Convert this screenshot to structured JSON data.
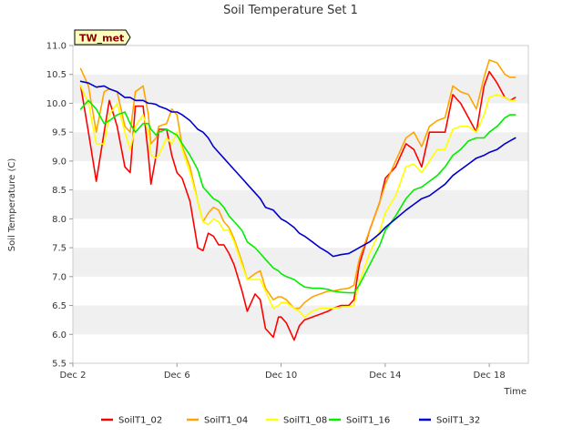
{
  "chart_data": {
    "type": "line",
    "title": "Soil Temperature Set 1",
    "xlabel": "Time",
    "ylabel": "Soil Temperature (C)",
    "badge": "TW_met",
    "xlim": [
      2.0,
      19.5
    ],
    "ylim": [
      5.5,
      11.0
    ],
    "yticks": [
      "5.5",
      "6.0",
      "6.5",
      "7.0",
      "7.5",
      "8.0",
      "8.5",
      "9.0",
      "9.5",
      "10.0",
      "10.5",
      "11.0"
    ],
    "xticks": [
      {
        "value": 2,
        "label": "Dec 2"
      },
      {
        "value": 6,
        "label": "Dec 6"
      },
      {
        "value": 10,
        "label": "Dec 10"
      },
      {
        "value": 14,
        "label": "Dec 14"
      },
      {
        "value": 18,
        "label": "Dec 18"
      }
    ],
    "legend_position": "bottom",
    "series": [
      {
        "name": "SoilT1_02",
        "color": "#ff0000",
        "x": [
          2.3,
          2.6,
          2.9,
          3.2,
          3.4,
          3.7,
          4.0,
          4.2,
          4.4,
          4.7,
          4.9,
          5.0,
          5.2,
          5.3,
          5.6,
          5.8,
          6.0,
          6.2,
          6.5,
          6.8,
          7.0,
          7.2,
          7.4,
          7.6,
          7.8,
          8.0,
          8.2,
          8.5,
          8.7,
          9.0,
          9.2,
          9.4,
          9.7,
          9.9,
          10.0,
          10.2,
          10.5,
          10.7,
          10.9,
          11.2,
          11.5,
          11.8,
          12.0,
          12.3,
          12.6,
          12.8,
          13.0,
          13.4,
          13.8,
          14.0,
          14.4,
          14.8,
          15.1,
          15.4,
          15.7,
          16.0,
          16.3,
          16.6,
          16.9,
          17.2,
          17.5,
          17.8,
          18.0,
          18.3,
          18.6,
          18.8,
          19.0
        ],
        "values": [
          10.3,
          9.5,
          8.65,
          9.5,
          10.05,
          9.6,
          8.9,
          8.8,
          9.95,
          9.95,
          9.1,
          8.6,
          9.1,
          9.55,
          9.55,
          9.1,
          8.8,
          8.7,
          8.3,
          7.5,
          7.45,
          7.75,
          7.7,
          7.55,
          7.55,
          7.4,
          7.2,
          6.75,
          6.4,
          6.7,
          6.6,
          6.1,
          5.95,
          6.3,
          6.3,
          6.2,
          5.9,
          6.15,
          6.25,
          6.3,
          6.35,
          6.4,
          6.45,
          6.5,
          6.5,
          6.6,
          7.2,
          7.8,
          8.3,
          8.7,
          8.9,
          9.3,
          9.2,
          8.9,
          9.5,
          9.5,
          9.5,
          10.15,
          10.0,
          9.75,
          9.5,
          10.3,
          10.55,
          10.35,
          10.1,
          10.05,
          10.1
        ]
      },
      {
        "name": "SoilT1_04",
        "color": "#ffa500",
        "x": [
          2.3,
          2.6,
          2.9,
          3.2,
          3.4,
          3.7,
          4.0,
          4.2,
          4.4,
          4.7,
          4.9,
          5.0,
          5.2,
          5.3,
          5.6,
          5.8,
          6.0,
          6.2,
          6.5,
          6.8,
          7.0,
          7.2,
          7.4,
          7.6,
          7.8,
          8.0,
          8.2,
          8.5,
          8.7,
          9.0,
          9.2,
          9.4,
          9.7,
          9.9,
          10.0,
          10.2,
          10.5,
          10.7,
          10.9,
          11.2,
          11.5,
          11.8,
          12.0,
          12.3,
          12.6,
          12.8,
          13.0,
          13.4,
          13.8,
          14.0,
          14.4,
          14.8,
          15.1,
          15.4,
          15.7,
          16.0,
          16.3,
          16.6,
          16.9,
          17.2,
          17.5,
          17.8,
          18.0,
          18.3,
          18.6,
          18.8,
          19.0
        ],
        "values": [
          10.6,
          10.3,
          9.5,
          10.2,
          10.25,
          10.2,
          9.6,
          9.5,
          10.2,
          10.3,
          9.8,
          9.3,
          9.4,
          9.6,
          9.65,
          9.9,
          9.8,
          9.25,
          8.9,
          8.3,
          7.95,
          8.1,
          8.2,
          8.15,
          7.95,
          7.85,
          7.65,
          7.25,
          6.95,
          7.05,
          7.1,
          6.8,
          6.6,
          6.65,
          6.65,
          6.6,
          6.45,
          6.45,
          6.55,
          6.65,
          6.7,
          6.75,
          6.75,
          6.78,
          6.8,
          6.85,
          7.3,
          7.8,
          8.3,
          8.6,
          9.0,
          9.4,
          9.5,
          9.25,
          9.6,
          9.7,
          9.75,
          10.3,
          10.2,
          10.15,
          9.9,
          10.45,
          10.75,
          10.7,
          10.5,
          10.45,
          10.45
        ]
      },
      {
        "name": "SoilT1_08",
        "color": "#ffff00",
        "x": [
          2.3,
          2.6,
          2.9,
          3.2,
          3.4,
          3.7,
          4.0,
          4.2,
          4.4,
          4.7,
          4.9,
          5.0,
          5.2,
          5.3,
          5.6,
          5.8,
          6.0,
          6.2,
          6.5,
          6.8,
          7.0,
          7.2,
          7.4,
          7.6,
          7.8,
          8.0,
          8.2,
          8.5,
          8.7,
          9.0,
          9.2,
          9.4,
          9.7,
          9.9,
          10.0,
          10.2,
          10.5,
          10.7,
          10.9,
          11.2,
          11.5,
          11.8,
          12.0,
          12.3,
          12.6,
          12.8,
          13.0,
          13.4,
          13.8,
          14.0,
          14.4,
          14.8,
          15.1,
          15.4,
          15.7,
          16.0,
          16.3,
          16.6,
          16.9,
          17.2,
          17.5,
          17.8,
          18.0,
          18.3,
          18.6,
          18.8,
          19.0
        ],
        "values": [
          10.3,
          10.0,
          9.3,
          9.3,
          9.8,
          10.0,
          9.5,
          9.2,
          9.6,
          9.8,
          9.5,
          9.1,
          9.05,
          9.1,
          9.4,
          9.3,
          9.5,
          9.2,
          8.8,
          8.3,
          7.95,
          7.9,
          8.0,
          7.95,
          7.8,
          7.8,
          7.6,
          7.2,
          6.95,
          6.95,
          6.95,
          6.75,
          6.45,
          6.5,
          6.55,
          6.55,
          6.45,
          6.4,
          6.3,
          6.4,
          6.45,
          6.45,
          6.45,
          6.47,
          6.48,
          6.5,
          6.9,
          7.4,
          7.8,
          8.1,
          8.4,
          8.9,
          8.95,
          8.8,
          9.0,
          9.2,
          9.2,
          9.55,
          9.6,
          9.6,
          9.5,
          9.8,
          10.1,
          10.15,
          10.1,
          10.05,
          10.05
        ]
      },
      {
        "name": "SoilT1_16",
        "color": "#00ee00",
        "x": [
          2.3,
          2.6,
          2.9,
          3.2,
          3.4,
          3.7,
          4.0,
          4.2,
          4.4,
          4.7,
          4.9,
          5.0,
          5.2,
          5.3,
          5.6,
          5.8,
          6.0,
          6.2,
          6.5,
          6.8,
          7.0,
          7.2,
          7.4,
          7.6,
          7.8,
          8.0,
          8.2,
          8.5,
          8.7,
          9.0,
          9.2,
          9.4,
          9.7,
          9.9,
          10.0,
          10.2,
          10.5,
          10.7,
          10.9,
          11.2,
          11.5,
          11.8,
          12.0,
          12.3,
          12.6,
          12.8,
          13.0,
          13.4,
          13.8,
          14.0,
          14.4,
          14.8,
          15.1,
          15.4,
          15.7,
          16.0,
          16.3,
          16.6,
          16.9,
          17.2,
          17.5,
          17.8,
          18.0,
          18.3,
          18.6,
          18.8,
          19.0
        ],
        "values": [
          9.9,
          10.05,
          9.9,
          9.65,
          9.7,
          9.8,
          9.85,
          9.65,
          9.5,
          9.65,
          9.65,
          9.55,
          9.45,
          9.5,
          9.55,
          9.5,
          9.45,
          9.3,
          9.1,
          8.85,
          8.55,
          8.45,
          8.35,
          8.3,
          8.2,
          8.05,
          7.95,
          7.8,
          7.6,
          7.5,
          7.4,
          7.3,
          7.15,
          7.1,
          7.05,
          7.0,
          6.95,
          6.88,
          6.82,
          6.8,
          6.8,
          6.78,
          6.75,
          6.73,
          6.72,
          6.72,
          6.85,
          7.2,
          7.55,
          7.8,
          8.05,
          8.35,
          8.5,
          8.55,
          8.65,
          8.75,
          8.9,
          9.1,
          9.2,
          9.35,
          9.4,
          9.4,
          9.5,
          9.6,
          9.75,
          9.8,
          9.8
        ]
      },
      {
        "name": "SoilT1_32",
        "color": "#0000cc",
        "x": [
          2.3,
          2.6,
          2.9,
          3.2,
          3.4,
          3.7,
          4.0,
          4.2,
          4.4,
          4.7,
          4.9,
          5.0,
          5.2,
          5.3,
          5.6,
          5.8,
          6.0,
          6.2,
          6.5,
          6.8,
          7.0,
          7.2,
          7.4,
          7.6,
          7.8,
          8.0,
          8.2,
          8.5,
          8.7,
          9.0,
          9.2,
          9.4,
          9.7,
          9.9,
          10.0,
          10.2,
          10.5,
          10.7,
          10.9,
          11.2,
          11.5,
          11.8,
          12.0,
          12.3,
          12.6,
          12.8,
          13.0,
          13.4,
          13.8,
          14.0,
          14.4,
          14.8,
          15.1,
          15.4,
          15.7,
          16.0,
          16.3,
          16.6,
          16.9,
          17.2,
          17.5,
          17.8,
          18.0,
          18.3,
          18.6,
          18.8,
          19.0
        ],
        "values": [
          10.38,
          10.35,
          10.28,
          10.3,
          10.25,
          10.2,
          10.1,
          10.1,
          10.05,
          10.05,
          10.0,
          10.0,
          9.98,
          9.95,
          9.9,
          9.85,
          9.85,
          9.8,
          9.7,
          9.55,
          9.5,
          9.4,
          9.25,
          9.15,
          9.05,
          8.95,
          8.85,
          8.7,
          8.6,
          8.45,
          8.35,
          8.2,
          8.15,
          8.05,
          8.0,
          7.95,
          7.85,
          7.75,
          7.7,
          7.6,
          7.5,
          7.42,
          7.35,
          7.38,
          7.4,
          7.45,
          7.5,
          7.6,
          7.75,
          7.85,
          8.0,
          8.15,
          8.25,
          8.35,
          8.4,
          8.5,
          8.6,
          8.75,
          8.85,
          8.95,
          9.05,
          9.1,
          9.15,
          9.2,
          9.3,
          9.35,
          9.4
        ]
      }
    ]
  }
}
